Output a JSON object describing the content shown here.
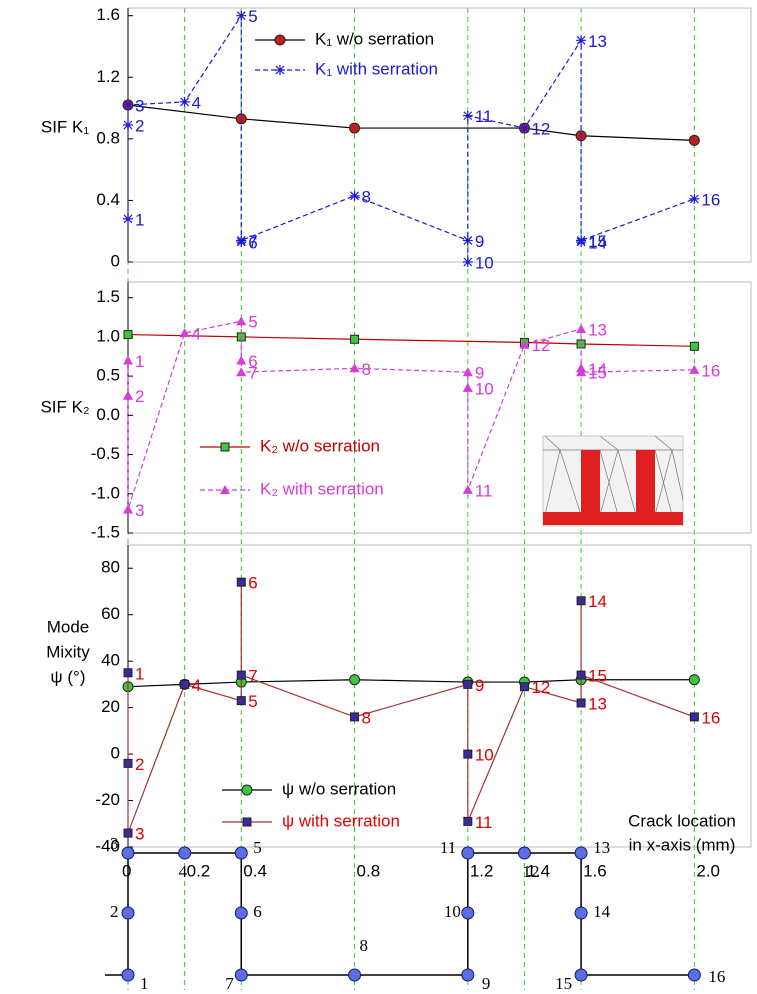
{
  "chart_data": [
    {
      "type": "line",
      "ylabel": "SIF K₁",
      "xlim": [
        0,
        2.2
      ],
      "ylim": [
        0,
        1.65
      ],
      "yticks": [
        0,
        0.4,
        0.8,
        1.2,
        1.6
      ],
      "series": [
        {
          "name": "K₁ w/o serration",
          "color": "#000000",
          "dashed": false,
          "marker": "circle",
          "marker_color": "#c0201a",
          "x": [
            0,
            0.4,
            0.8,
            1.4,
            1.6,
            2
          ],
          "values": [
            1.02,
            0.93,
            0.87,
            0.87,
            0.82,
            0.79
          ]
        },
        {
          "name": "K₁ with serration",
          "color": "#1a1ad6",
          "dashed": true,
          "marker": "asterisk",
          "marker_color": "#1a1ad6",
          "x": [
            0,
            0,
            0,
            0.2,
            0.4,
            0.4,
            0.4,
            0.8,
            1.2,
            1.2,
            1.2,
            1.4,
            1.6,
            1.6,
            1.6,
            2
          ],
          "values": [
            0.28,
            0.89,
            1.02,
            1.04,
            1.6,
            0.13,
            0.14,
            0.43,
            0.14,
            0,
            0.95,
            0.87,
            1.44,
            0.13,
            0.14,
            0.41
          ],
          "point_labels": [
            "1",
            "2",
            "3",
            "4",
            "5",
            "6",
            "7",
            "8",
            "9",
            "10",
            "11",
            "12",
            "13",
            "14",
            "15",
            "16"
          ]
        }
      ]
    },
    {
      "type": "line",
      "ylabel": "SIF K₂",
      "xlim": [
        0,
        2.2
      ],
      "ylim": [
        -1.5,
        1.7
      ],
      "yticks": [
        -1.5,
        {
          "value": -1,
          "label": "-1.0"
        },
        -0.5,
        {
          "value": 0,
          "label": "0.0"
        },
        0.5,
        {
          "value": 1,
          "label": "1.0"
        },
        1.5
      ],
      "series": [
        {
          "name": "K₂ w/o serration",
          "color": "#c00000",
          "dashed": false,
          "marker": "square",
          "marker_color": "#3cc83c",
          "x": [
            0,
            0.4,
            0.8,
            1.4,
            1.6,
            2
          ],
          "values": [
            1.03,
            1.0,
            0.97,
            0.93,
            0.91,
            0.88
          ]
        },
        {
          "name": "K₂ with serration",
          "color": "#d63cd6",
          "dashed": true,
          "marker": "triangle",
          "marker_color": "#d63cd6",
          "x": [
            0,
            0,
            0,
            0.2,
            0.4,
            0.4,
            0.4,
            0.8,
            1.2,
            1.2,
            1.2,
            1.4,
            1.6,
            1.6,
            1.6,
            2
          ],
          "values": [
            0.7,
            0.25,
            -1.2,
            1.05,
            1.2,
            0.7,
            0.55,
            0.6,
            0.55,
            0.35,
            -0.95,
            0.9,
            1.1,
            0.6,
            0.55,
            0.58
          ],
          "point_labels": [
            "1",
            "2",
            "3",
            "4",
            "5",
            "6",
            "7",
            "8",
            "9",
            "10",
            "11",
            "12",
            "13",
            "14",
            "15",
            "16"
          ]
        }
      ]
    },
    {
      "type": "line",
      "ylabel": [
        "Mode",
        "Mixity",
        "ψ  (°)"
      ],
      "xlabel": [
        "Crack location",
        "in x-axis (mm)"
      ],
      "xlim": [
        0,
        2.2
      ],
      "ylim": [
        -40,
        90
      ],
      "yticks": [
        -40,
        -20,
        0,
        20,
        40,
        60,
        80
      ],
      "xticks": [
        0,
        0.2,
        0.4,
        0.8,
        1.2,
        1.4,
        1.6,
        {
          "value": 2,
          "label": "2.0"
        }
      ],
      "series": [
        {
          "name": "ψ  w/o serration",
          "color": "#000000",
          "dashed": false,
          "marker": "circle",
          "marker_color": "#3cc83c",
          "x": [
            0,
            0.2,
            0.4,
            0.8,
            1.2,
            1.4,
            1.6,
            2
          ],
          "values": [
            29,
            30,
            31,
            32,
            31,
            31,
            32,
            32
          ]
        },
        {
          "name": "ψ  with serration",
          "color": "#a83030",
          "dashed": false,
          "marker": "square",
          "marker_color": "#3a2a9a",
          "x": [
            0,
            0,
            0,
            0.2,
            0.4,
            0.4,
            0.4,
            0.8,
            1.2,
            1.2,
            1.2,
            1.4,
            1.6,
            1.6,
            1.6,
            2
          ],
          "values": [
            35,
            -4,
            -34,
            30,
            23,
            74,
            34,
            16,
            30,
            0,
            -29,
            29,
            22,
            66,
            34,
            16
          ],
          "point_labels": [
            "1",
            "2",
            "3",
            "4",
            "5",
            "6",
            "7",
            "8",
            "9",
            "10",
            "11",
            "12",
            "13",
            "14",
            "15",
            "16"
          ],
          "label_color": "#e00000"
        }
      ]
    }
  ],
  "diagram": {
    "labels": [
      "1",
      "2",
      "3",
      "4",
      "5",
      "6",
      "7",
      "8",
      "9",
      "10",
      "11",
      "12",
      "13",
      "14",
      "15",
      "16"
    ]
  }
}
